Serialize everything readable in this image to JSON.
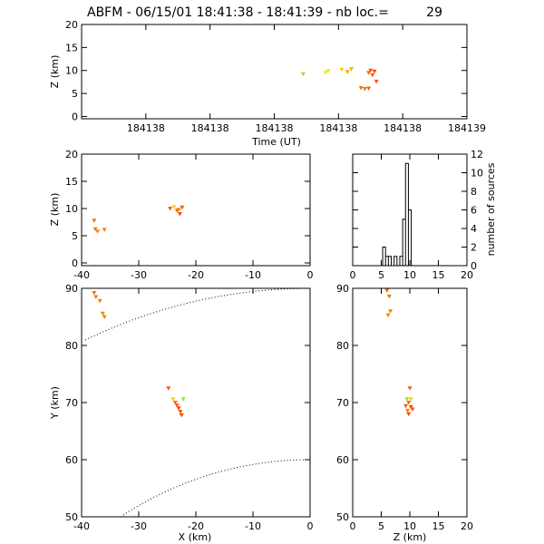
{
  "title": "ABFM - 06/15/01 18:41:38 - 18:41:39 - nb loc.=",
  "count": "29",
  "colors": {
    "green": "#88ee22",
    "yellow": "#eeee00",
    "orange": "#ffaa00",
    "dark_orange": "#ee8800",
    "red_orange": "#ff5500"
  },
  "chart_data": [
    {
      "type": "scatter",
      "id": "time-z",
      "xlabel": "Time (UT)",
      "ylabel": "Z (km)",
      "xlim": [
        0,
        1
      ],
      "ylim": [
        -0.5,
        20
      ],
      "xtick_labels": [
        "184138",
        "184138",
        "184138",
        "184138",
        "184138",
        "184139"
      ],
      "xtick_positions": [
        0.1667,
        0.3333,
        0.5,
        0.6667,
        0.8333,
        1.0
      ],
      "yticks": [
        0,
        5,
        10,
        15,
        20
      ],
      "points": [
        {
          "x": 0.575,
          "z": 9.2,
          "c": "#88ee22"
        },
        {
          "x": 0.633,
          "z": 9.5,
          "c": "#eeee00"
        },
        {
          "x": 0.64,
          "z": 9.9,
          "c": "#eeee00"
        },
        {
          "x": 0.675,
          "z": 10.2,
          "c": "#ffcc00"
        },
        {
          "x": 0.69,
          "z": 9.7,
          "c": "#ffaa00"
        },
        {
          "x": 0.7,
          "z": 10.3,
          "c": "#ffaa00"
        },
        {
          "x": 0.725,
          "z": 6.2,
          "c": "#ee7700"
        },
        {
          "x": 0.735,
          "z": 6.0,
          "c": "#ee7700"
        },
        {
          "x": 0.745,
          "z": 6.1,
          "c": "#ee6600"
        },
        {
          "x": 0.745,
          "z": 9.5,
          "c": "#ff6600"
        },
        {
          "x": 0.75,
          "z": 10.0,
          "c": "#ff5500"
        },
        {
          "x": 0.755,
          "z": 9.0,
          "c": "#ff5500"
        },
        {
          "x": 0.76,
          "z": 9.8,
          "c": "#ff4400"
        },
        {
          "x": 0.765,
          "z": 7.6,
          "c": "#ff5500"
        }
      ]
    },
    {
      "type": "scatter",
      "id": "x-z",
      "xlabel": "",
      "ylabel": "Z (km)",
      "xlim": [
        -40,
        0
      ],
      "ylim": [
        -0.5,
        20
      ],
      "xticks": [
        -40,
        -30,
        -20,
        -10,
        0
      ],
      "yticks": [
        0,
        5,
        10,
        15,
        20
      ],
      "points": [
        {
          "x": -37.8,
          "z": 7.8,
          "c": "#ee7700"
        },
        {
          "x": -37.6,
          "z": 6.2,
          "c": "#ee7700"
        },
        {
          "x": -37.2,
          "z": 5.8,
          "c": "#ee8800"
        },
        {
          "x": -36.0,
          "z": 6.1,
          "c": "#ee8800"
        },
        {
          "x": -24.5,
          "z": 10.0,
          "c": "#ff5500"
        },
        {
          "x": -23.8,
          "z": 10.3,
          "c": "#ffcc00"
        },
        {
          "x": -23.3,
          "z": 9.6,
          "c": "#ff6600"
        },
        {
          "x": -22.8,
          "z": 9.0,
          "c": "#ff4400"
        },
        {
          "x": -22.4,
          "z": 10.2,
          "c": "#ff5500"
        },
        {
          "x": -23.0,
          "z": 9.8,
          "c": "#ee8800"
        }
      ]
    },
    {
      "type": "bar",
      "id": "histogram",
      "xlabel": "",
      "ylabel": "number of sources",
      "xlim": [
        0,
        20
      ],
      "ylim": [
        0,
        12
      ],
      "xticks": [
        0,
        5,
        10,
        15,
        20
      ],
      "yticks": [
        0,
        2,
        4,
        6,
        8,
        10,
        12
      ],
      "bin_width": 0.5,
      "bins": [
        {
          "x": 5.5,
          "count": 2
        },
        {
          "x": 6.0,
          "count": 1
        },
        {
          "x": 6.5,
          "count": 1
        },
        {
          "x": 7.0,
          "count": 0
        },
        {
          "x": 7.5,
          "count": 1
        },
        {
          "x": 8.0,
          "count": 0
        },
        {
          "x": 8.5,
          "count": 1
        },
        {
          "x": 9.0,
          "count": 5
        },
        {
          "x": 9.5,
          "count": 11
        },
        {
          "x": 10.0,
          "count": 6
        }
      ]
    },
    {
      "type": "scatter",
      "id": "x-y",
      "xlabel": "X (km)",
      "ylabel": "Y (km)",
      "xlim": [
        -40,
        0
      ],
      "ylim": [
        50,
        90
      ],
      "xticks": [
        -40,
        -30,
        -20,
        -10,
        0
      ],
      "yticks": [
        50,
        60,
        70,
        80,
        90
      ],
      "points": [
        {
          "x": -37.8,
          "y": 89.2,
          "c": "#ee7700"
        },
        {
          "x": -37.5,
          "y": 88.5,
          "c": "#ee7700"
        },
        {
          "x": -36.8,
          "y": 87.8,
          "c": "#ee8800"
        },
        {
          "x": -36.3,
          "y": 85.6,
          "c": "#ee8800"
        },
        {
          "x": -36.0,
          "y": 85.0,
          "c": "#ee8800"
        },
        {
          "x": -24.8,
          "y": 72.5,
          "c": "#ff5500"
        },
        {
          "x": -24.0,
          "y": 70.6,
          "c": "#ffcc00"
        },
        {
          "x": -23.6,
          "y": 70.0,
          "c": "#ff6600"
        },
        {
          "x": -23.3,
          "y": 69.5,
          "c": "#ff5500"
        },
        {
          "x": -23.0,
          "y": 69.0,
          "c": "#ff4400"
        },
        {
          "x": -22.7,
          "y": 68.4,
          "c": "#ff5500"
        },
        {
          "x": -22.5,
          "y": 67.8,
          "c": "#ff4400"
        },
        {
          "x": -22.2,
          "y": 70.6,
          "c": "#88ee22"
        }
      ]
    },
    {
      "type": "scatter",
      "id": "z-y",
      "xlabel": "Z (km)",
      "ylabel": "",
      "xlim": [
        0,
        20
      ],
      "ylim": [
        50,
        90
      ],
      "xticks": [
        0,
        5,
        10,
        15,
        20
      ],
      "yticks": [
        50,
        60,
        70,
        80,
        90
      ],
      "points": [
        {
          "z": 6.0,
          "y": 89.6,
          "c": "#ee7700"
        },
        {
          "z": 6.4,
          "y": 88.6,
          "c": "#ee7700"
        },
        {
          "z": 6.6,
          "y": 86.0,
          "c": "#ee8800"
        },
        {
          "z": 6.2,
          "y": 85.3,
          "c": "#ee8800"
        },
        {
          "z": 10.0,
          "y": 72.5,
          "c": "#ff5500"
        },
        {
          "z": 9.5,
          "y": 70.6,
          "c": "#88ee22"
        },
        {
          "z": 10.2,
          "y": 70.6,
          "c": "#ffcc00"
        },
        {
          "z": 9.8,
          "y": 70.0,
          "c": "#ff6600"
        },
        {
          "z": 9.3,
          "y": 69.4,
          "c": "#ff5500"
        },
        {
          "z": 10.2,
          "y": 69.2,
          "c": "#ff4400"
        },
        {
          "z": 9.6,
          "y": 68.6,
          "c": "#ee8800"
        },
        {
          "z": 9.8,
          "y": 68.0,
          "c": "#ff4400"
        },
        {
          "z": 10.5,
          "y": 68.8,
          "c": "#ff5500"
        }
      ]
    }
  ]
}
